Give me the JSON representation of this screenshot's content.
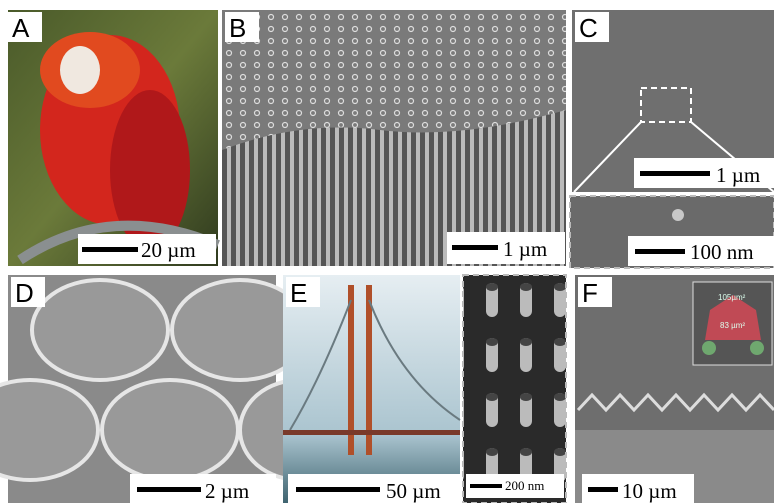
{
  "panels": [
    {
      "label": "A",
      "scale_bar": "20 µm"
    },
    {
      "label": "B",
      "scale_bar": "1 µm"
    },
    {
      "label": "C",
      "scale_bar": "1 µm",
      "inset_scale_bar": "100 nm"
    },
    {
      "label": "D",
      "scale_bar": "2 µm"
    },
    {
      "label": "E",
      "scale_bar": "50 µm",
      "inset_scale_bar": "200 nm"
    },
    {
      "label": "F",
      "scale_bar": "10 µm",
      "inset_labels": [
        "105µm²",
        "83 µm²"
      ]
    }
  ]
}
